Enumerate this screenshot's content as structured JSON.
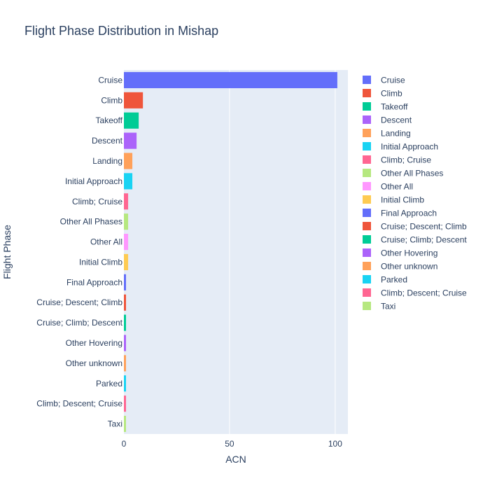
{
  "chart_data": {
    "type": "bar",
    "orientation": "horizontal",
    "title": "Flight Phase Distribution in Mishap",
    "xlabel": "ACN",
    "ylabel": "Flight Phase",
    "xlim": [
      0,
      106
    ],
    "xticks": [
      0,
      50,
      100
    ],
    "grid": true,
    "legend_position": "right",
    "plot_background": "#e5ecf6",
    "categories": [
      "Cruise",
      "Climb",
      "Takeoff",
      "Descent",
      "Landing",
      "Initial Approach",
      "Climb; Cruise",
      "Other All Phases",
      "Other All",
      "Initial Climb",
      "Final Approach",
      "Cruise; Descent; Climb",
      "Cruise; Climb; Descent",
      "Other Hovering",
      "Other unknown",
      "Parked",
      "Climb; Descent; Cruise",
      "Taxi"
    ],
    "values": [
      101,
      9,
      7,
      6,
      4,
      4,
      2,
      2,
      2,
      2,
      1,
      1,
      1,
      1,
      1,
      1,
      1,
      1
    ],
    "colors": [
      "#636efa",
      "#EF553B",
      "#00cc96",
      "#ab63fa",
      "#FFA15A",
      "#19d3f3",
      "#FF6692",
      "#B6E880",
      "#FF97FF",
      "#FECB52",
      "#636efa",
      "#EF553B",
      "#00cc96",
      "#ab63fa",
      "#FFA15A",
      "#19d3f3",
      "#FF6692",
      "#B6E880"
    ]
  }
}
